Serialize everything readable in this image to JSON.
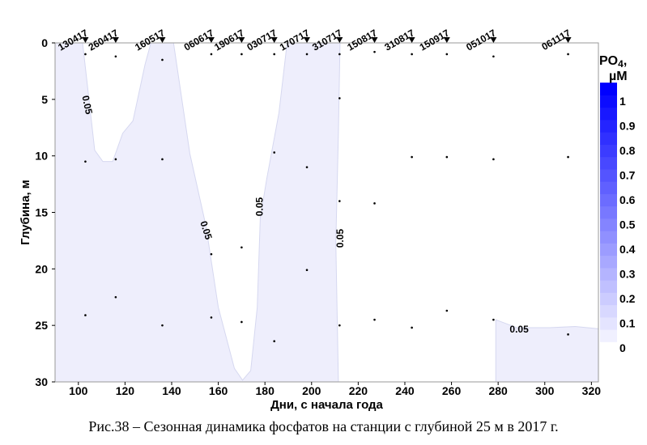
{
  "chart_data": {
    "type": "contour",
    "xlabel": "Дни, с начала года",
    "ylabel": "Глубина, м",
    "xlim": [
      90,
      323
    ],
    "ylim": [
      0,
      30
    ],
    "xticks": [
      100,
      120,
      140,
      160,
      180,
      200,
      220,
      240,
      260,
      280,
      300,
      320
    ],
    "yticks": [
      0,
      5,
      10,
      15,
      20,
      25,
      30
    ],
    "colorbar": {
      "title": "PO",
      "title_sub": "4",
      "title_suffix": ",",
      "unit": "µM",
      "min_color": "#f0f0ff",
      "max_color": "#0000ff",
      "range": [
        0,
        1.05
      ],
      "tick_labels": [
        "0",
        "0.1",
        "0.2",
        "0.3",
        "0.4",
        "0.5",
        "0.6",
        "0.7",
        "0.8",
        "0.9",
        "1"
      ],
      "tick_values": [
        0,
        0.1,
        0.2,
        0.3,
        0.4,
        0.5,
        0.6,
        0.7,
        0.8,
        0.9,
        1
      ]
    },
    "fill_color": "#eeeefc",
    "contour_level": "0.05",
    "regions_above_level": [
      [
        [
          90,
          0
        ],
        [
          101.8,
          0
        ],
        [
          104,
          4
        ],
        [
          107,
          9.5
        ],
        [
          110.5,
          10.5
        ],
        [
          114.7,
          10.5
        ],
        [
          119,
          8
        ],
        [
          123.4,
          6.9
        ],
        [
          128.6,
          1.9
        ],
        [
          131.1,
          0
        ],
        [
          140.8,
          0
        ],
        [
          147.8,
          9.8
        ],
        [
          154.7,
          16.2
        ],
        [
          160,
          23.4
        ],
        [
          166.9,
          28.8
        ],
        [
          170.4,
          29.85
        ],
        [
          173.9,
          29
        ],
        [
          176.7,
          23.4
        ],
        [
          178,
          15.5
        ],
        [
          180.8,
          12
        ],
        [
          186,
          6.2
        ],
        [
          189.5,
          0
        ],
        [
          212.2,
          0
        ],
        [
          211.5,
          8
        ],
        [
          210.4,
          17.7
        ],
        [
          211.5,
          30
        ],
        [
          90,
          30
        ]
      ],
      [
        [
          279,
          24.5
        ],
        [
          279,
          30
        ],
        [
          323,
          30
        ],
        [
          323,
          25.3
        ],
        [
          313,
          25.1
        ],
        [
          302,
          25.2
        ],
        [
          288,
          25.2
        ],
        [
          279,
          24.5
        ]
      ]
    ],
    "contour_labels": [
      {
        "text": "0.05",
        "x": 103.5,
        "y": 5.5,
        "angle": 78
      },
      {
        "text": "0.05",
        "x": 154.5,
        "y": 16.6,
        "angle": 72
      },
      {
        "text": "0.05",
        "x": 178,
        "y": 14.5,
        "angle": -90
      },
      {
        "text": "0.05",
        "x": 212.5,
        "y": 17.3,
        "angle": -90
      },
      {
        "text": "0.05",
        "x": 289,
        "y": 25.4,
        "angle": 0
      }
    ],
    "stations": [
      {
        "label": "130417",
        "day": 103,
        "depths": [
          1,
          10.5,
          24.1
        ]
      },
      {
        "label": "260417",
        "day": 116,
        "depths": [
          1.2,
          10.3,
          22.5
        ]
      },
      {
        "label": "160517",
        "day": 136,
        "depths": [
          1.5,
          10.3,
          25
        ]
      },
      {
        "label": "060617",
        "day": 157,
        "depths": [
          1,
          18.7,
          24.3
        ]
      },
      {
        "label": "190617",
        "day": 170,
        "depths": [
          1,
          18.1,
          24.7
        ]
      },
      {
        "label": "030717",
        "day": 184,
        "depths": [
          1,
          9.7,
          26.4
        ]
      },
      {
        "label": "170717",
        "day": 198,
        "depths": [
          1,
          11,
          20.1
        ]
      },
      {
        "label": "310717",
        "day": 212,
        "depths": [
          1,
          4.9,
          14,
          25
        ]
      },
      {
        "label": "150817",
        "day": 227,
        "depths": [
          0.8,
          14.2,
          24.5
        ]
      },
      {
        "label": "310817",
        "day": 243,
        "depths": [
          1,
          10.1,
          25.2
        ]
      },
      {
        "label": "150917",
        "day": 258,
        "depths": [
          1,
          10.1,
          23.7
        ]
      },
      {
        "label": "051017",
        "day": 278,
        "depths": [
          1.2,
          10.3,
          24.5
        ]
      },
      {
        "label": "061117",
        "day": 310,
        "depths": [
          1,
          10.1,
          25.8
        ]
      }
    ]
  },
  "caption": "Рис.38 – Сезонная динамика фосфатов на станции с глубиной 25 м в 2017 г."
}
